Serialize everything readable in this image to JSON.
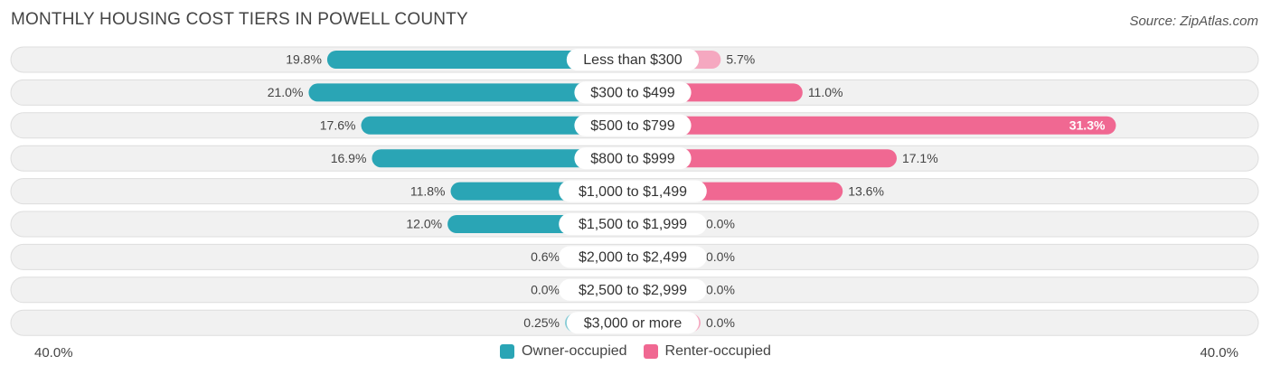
{
  "header": {
    "title": "MONTHLY HOUSING COST TIERS IN POWELL COUNTY",
    "source": "Source: ZipAtlas.com"
  },
  "axis": {
    "left_label": "40.0%",
    "right_label": "40.0%"
  },
  "legend": {
    "owner_label": "Owner-occupied",
    "renter_label": "Renter-occupied"
  },
  "colors": {
    "owner_strong": "#2aa5b5",
    "owner_light": "#85cbd5",
    "renter_strong": "#f06892",
    "renter_light": "#f5a8c0",
    "row_bg": "#f1f1f1",
    "row_border": "#dedede"
  },
  "chart_data": {
    "type": "bar",
    "orientation": "diverging-horizontal",
    "xlim": [
      -40,
      40
    ],
    "categories": [
      "Less than $300",
      "$300 to $499",
      "$500 to $799",
      "$800 to $999",
      "$1,000 to $1,499",
      "$1,500 to $1,999",
      "$2,000 to $2,499",
      "$2,500 to $2,999",
      "$3,000 or more"
    ],
    "series": [
      {
        "name": "Owner-occupied",
        "values": [
          19.8,
          21.0,
          17.6,
          16.9,
          11.8,
          12.0,
          0.6,
          0.0,
          0.25
        ],
        "labels": [
          "19.8%",
          "21.0%",
          "17.6%",
          "16.9%",
          "11.8%",
          "12.0%",
          "0.6%",
          "0.0%",
          "0.25%"
        ]
      },
      {
        "name": "Renter-occupied",
        "values": [
          5.7,
          11.0,
          31.3,
          17.1,
          13.6,
          0.0,
          0.0,
          0.0,
          0.0
        ],
        "labels": [
          "5.7%",
          "11.0%",
          "31.3%",
          "17.1%",
          "13.6%",
          "0.0%",
          "0.0%",
          "0.0%",
          "0.0%"
        ]
      }
    ]
  }
}
